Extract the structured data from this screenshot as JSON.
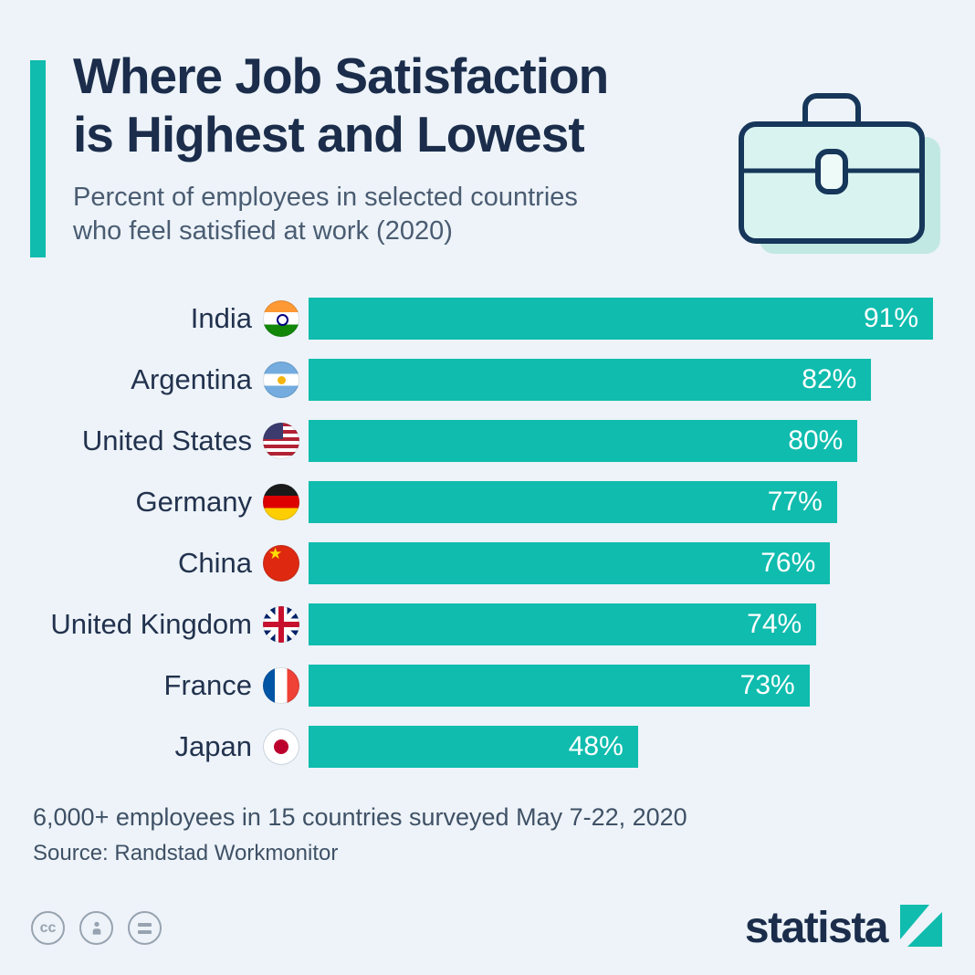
{
  "page": {
    "background": "#edf3f8"
  },
  "header": {
    "accent_color": "#0fbcae",
    "title_line1": "Where Job Satisfaction",
    "title_line2": "is Highest and Lowest",
    "subtitle_line1": "Percent of employees in selected countries",
    "subtitle_line2": "who feel satisfied at work (2020)"
  },
  "chart_data": {
    "type": "bar",
    "orientation": "horizontal",
    "title": "Where Job Satisfaction is Highest and Lowest",
    "subtitle": "Percent of employees in selected countries who feel satisfied at work (2020)",
    "unit": "%",
    "xlim": [
      0,
      100
    ],
    "bars_scaled_to_max": true,
    "bar_color": "#0fbcae",
    "value_label_color": "#ffffff",
    "label_color": "#22324e",
    "categories": [
      "India",
      "Argentina",
      "United States",
      "Germany",
      "China",
      "United Kingdom",
      "France",
      "Japan"
    ],
    "values": [
      91,
      82,
      80,
      77,
      76,
      74,
      73,
      48
    ],
    "flags": [
      "india",
      "argentina",
      "united-states",
      "germany",
      "china",
      "united-kingdom",
      "france",
      "japan"
    ]
  },
  "footer": {
    "note": "6,000+ employees in 15 countries surveyed May 7-22, 2020",
    "source": "Source: Randstad Workmonitor"
  },
  "branding": {
    "logo_text": "statista",
    "cc_glyph": "cc",
    "license_icons": [
      "cc-icon",
      "attribution-icon",
      "equal-icon"
    ]
  }
}
